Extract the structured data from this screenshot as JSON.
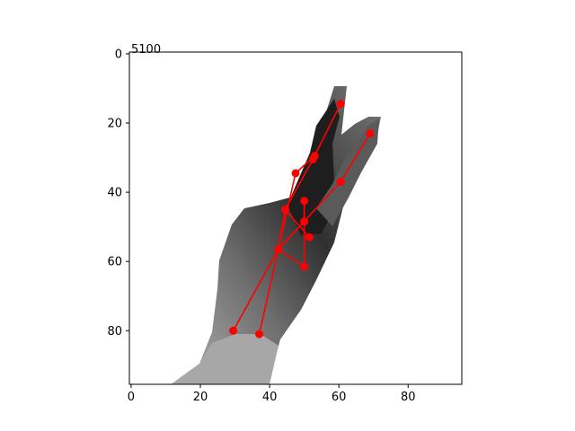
{
  "chart_data": {
    "type": "scatter",
    "title": "5100",
    "xlabel": "",
    "ylabel": "",
    "xlim": [
      -0.5,
      95.5
    ],
    "ylim": [
      95.5,
      -0.5
    ],
    "y_inverted": true,
    "grid": false,
    "legend": "none",
    "xticks": [
      0,
      20,
      40,
      60,
      80
    ],
    "yticks": [
      0,
      20,
      40,
      60,
      80
    ],
    "tick_labels_x": [
      "0",
      "20",
      "40",
      "60",
      "80"
    ],
    "tick_labels_y": [
      "0",
      "20",
      "40",
      "60",
      "80"
    ],
    "background_image": "grayscale depth map of a hand making a V (two raised fingers)",
    "keypoint_color": "#ff0000",
    "keypoints": [
      {
        "x": 42.5,
        "y": 56.5
      },
      {
        "x": 29.5,
        "y": 80.0
      },
      {
        "x": 37.0,
        "y": 81.0
      },
      {
        "x": 50.0,
        "y": 61.5
      },
      {
        "x": 51.5,
        "y": 53.0
      },
      {
        "x": 50.0,
        "y": 48.5
      },
      {
        "x": 50.0,
        "y": 42.5
      },
      {
        "x": 44.5,
        "y": 45.0
      },
      {
        "x": 47.5,
        "y": 34.5
      },
      {
        "x": 60.5,
        "y": 37.0
      },
      {
        "x": 69.0,
        "y": 23.0
      },
      {
        "x": 52.5,
        "y": 30.5
      },
      {
        "x": 53.0,
        "y": 29.5
      },
      {
        "x": 60.5,
        "y": 14.5
      }
    ],
    "skeleton": [
      [
        0,
        1
      ],
      [
        0,
        2
      ],
      [
        0,
        3
      ],
      [
        0,
        5
      ],
      [
        0,
        7
      ],
      [
        0,
        8
      ],
      [
        0,
        9
      ],
      [
        3,
        6
      ],
      [
        4,
        7
      ],
      [
        5,
        6
      ],
      [
        8,
        12
      ],
      [
        9,
        10
      ],
      [
        7,
        11
      ],
      [
        11,
        12
      ],
      [
        12,
        13
      ]
    ]
  }
}
